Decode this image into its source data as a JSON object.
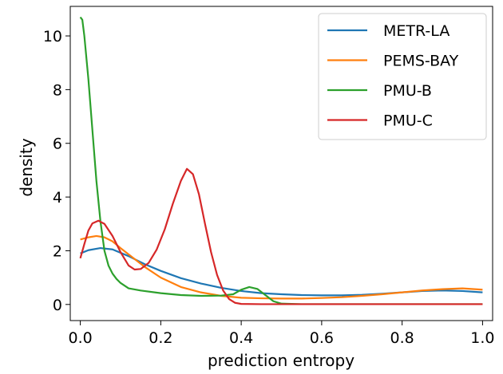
{
  "chart_data": {
    "type": "line",
    "title": "",
    "xlabel": "prediction entropy",
    "ylabel": "density",
    "xlim": [
      -0.025,
      1.025
    ],
    "ylim": [
      -0.6,
      11.1
    ],
    "xticks": [
      {
        "value": 0.0,
        "label": "0.0"
      },
      {
        "value": 0.2,
        "label": "0.2"
      },
      {
        "value": 0.4,
        "label": "0.4"
      },
      {
        "value": 0.6,
        "label": "0.6"
      },
      {
        "value": 0.8,
        "label": "0.8"
      },
      {
        "value": 1.0,
        "label": "1.0"
      }
    ],
    "yticks": [
      {
        "value": 0,
        "label": "0"
      },
      {
        "value": 2,
        "label": "2"
      },
      {
        "value": 4,
        "label": "4"
      },
      {
        "value": 6,
        "label": "6"
      },
      {
        "value": 8,
        "label": "8"
      },
      {
        "value": 10,
        "label": "10"
      }
    ],
    "grid": false,
    "legend_position": "top-right",
    "series": [
      {
        "name": "METR-LA",
        "color": "#1f77b4",
        "points": [
          [
            0.0,
            1.9
          ],
          [
            0.02,
            2.02
          ],
          [
            0.05,
            2.1
          ],
          [
            0.08,
            2.05
          ],
          [
            0.12,
            1.8
          ],
          [
            0.16,
            1.5
          ],
          [
            0.2,
            1.25
          ],
          [
            0.25,
            0.98
          ],
          [
            0.3,
            0.78
          ],
          [
            0.35,
            0.62
          ],
          [
            0.4,
            0.5
          ],
          [
            0.45,
            0.42
          ],
          [
            0.5,
            0.38
          ],
          [
            0.55,
            0.35
          ],
          [
            0.6,
            0.34
          ],
          [
            0.65,
            0.34
          ],
          [
            0.7,
            0.36
          ],
          [
            0.75,
            0.4
          ],
          [
            0.8,
            0.45
          ],
          [
            0.85,
            0.5
          ],
          [
            0.9,
            0.52
          ],
          [
            0.95,
            0.5
          ],
          [
            1.0,
            0.45
          ]
        ]
      },
      {
        "name": "PEMS-BAY",
        "color": "#ff7f0e",
        "points": [
          [
            0.0,
            2.42
          ],
          [
            0.02,
            2.5
          ],
          [
            0.04,
            2.55
          ],
          [
            0.06,
            2.5
          ],
          [
            0.08,
            2.35
          ],
          [
            0.1,
            2.1
          ],
          [
            0.13,
            1.75
          ],
          [
            0.16,
            1.4
          ],
          [
            0.2,
            1.0
          ],
          [
            0.25,
            0.65
          ],
          [
            0.3,
            0.45
          ],
          [
            0.35,
            0.32
          ],
          [
            0.4,
            0.25
          ],
          [
            0.45,
            0.23
          ],
          [
            0.5,
            0.22
          ],
          [
            0.55,
            0.22
          ],
          [
            0.6,
            0.24
          ],
          [
            0.65,
            0.27
          ],
          [
            0.7,
            0.32
          ],
          [
            0.75,
            0.38
          ],
          [
            0.8,
            0.45
          ],
          [
            0.85,
            0.52
          ],
          [
            0.9,
            0.57
          ],
          [
            0.95,
            0.6
          ],
          [
            1.0,
            0.55
          ]
        ]
      },
      {
        "name": "PMU-B",
        "color": "#2ca02c",
        "points": [
          [
            0.0,
            10.7
          ],
          [
            0.005,
            10.6
          ],
          [
            0.01,
            10.0
          ],
          [
            0.02,
            8.4
          ],
          [
            0.03,
            6.5
          ],
          [
            0.04,
            4.6
          ],
          [
            0.05,
            3.1
          ],
          [
            0.06,
            2.0
          ],
          [
            0.07,
            1.45
          ],
          [
            0.08,
            1.15
          ],
          [
            0.09,
            0.95
          ],
          [
            0.1,
            0.8
          ],
          [
            0.12,
            0.6
          ],
          [
            0.15,
            0.52
          ],
          [
            0.2,
            0.42
          ],
          [
            0.25,
            0.35
          ],
          [
            0.3,
            0.32
          ],
          [
            0.35,
            0.33
          ],
          [
            0.38,
            0.38
          ],
          [
            0.4,
            0.55
          ],
          [
            0.42,
            0.65
          ],
          [
            0.44,
            0.58
          ],
          [
            0.46,
            0.35
          ],
          [
            0.48,
            0.12
          ],
          [
            0.5,
            0.03
          ],
          [
            0.55,
            0.01
          ],
          [
            0.6,
            0.01
          ],
          [
            0.7,
            0.01
          ],
          [
            0.8,
            0.01
          ],
          [
            0.9,
            0.01
          ],
          [
            1.0,
            0.01
          ]
        ]
      },
      {
        "name": "PMU-C",
        "color": "#d62728",
        "points": [
          [
            0.0,
            1.72
          ],
          [
            0.01,
            2.25
          ],
          [
            0.02,
            2.75
          ],
          [
            0.03,
            3.02
          ],
          [
            0.045,
            3.12
          ],
          [
            0.06,
            3.0
          ],
          [
            0.08,
            2.55
          ],
          [
            0.1,
            1.95
          ],
          [
            0.12,
            1.45
          ],
          [
            0.135,
            1.3
          ],
          [
            0.15,
            1.32
          ],
          [
            0.17,
            1.55
          ],
          [
            0.19,
            2.05
          ],
          [
            0.21,
            2.8
          ],
          [
            0.23,
            3.75
          ],
          [
            0.25,
            4.6
          ],
          [
            0.265,
            5.05
          ],
          [
            0.28,
            4.85
          ],
          [
            0.295,
            4.1
          ],
          [
            0.31,
            3.0
          ],
          [
            0.325,
            1.95
          ],
          [
            0.34,
            1.1
          ],
          [
            0.355,
            0.52
          ],
          [
            0.37,
            0.2
          ],
          [
            0.385,
            0.06
          ],
          [
            0.4,
            0.02
          ],
          [
            0.45,
            0.01
          ],
          [
            0.5,
            0.01
          ],
          [
            0.6,
            0.01
          ],
          [
            0.7,
            0.01
          ],
          [
            0.8,
            0.01
          ],
          [
            0.9,
            0.01
          ],
          [
            1.0,
            0.01
          ]
        ]
      }
    ]
  }
}
